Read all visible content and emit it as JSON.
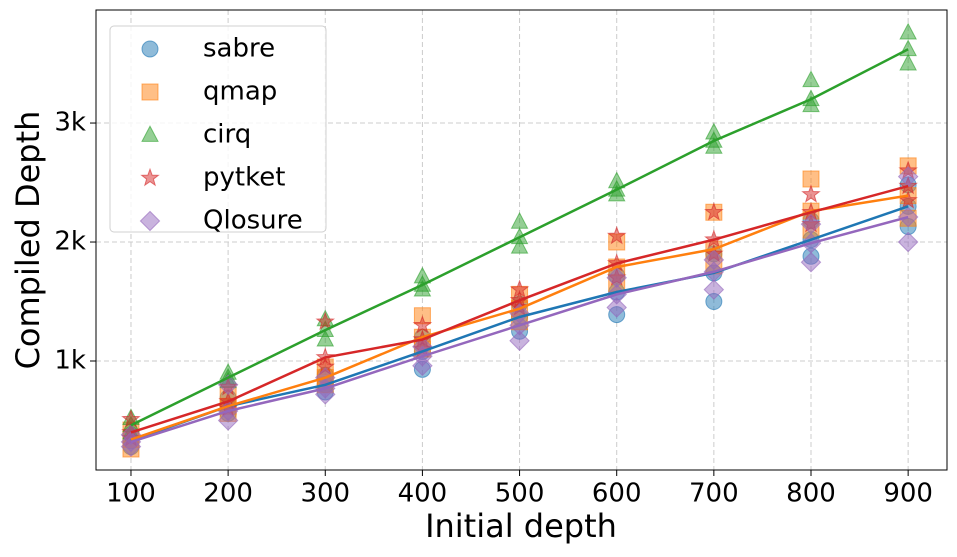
{
  "chart_data": {
    "type": "scatter",
    "x_label": "Initial depth",
    "y_label": "Compiled Depth",
    "xlim": [
      64,
      940
    ],
    "ylim": [
      84,
      3950
    ],
    "xticks": [
      100,
      200,
      300,
      400,
      500,
      600,
      700,
      800,
      900
    ],
    "yticks": [
      {
        "value": 1000,
        "label": "1k"
      },
      {
        "value": 2000,
        "label": "2k"
      },
      {
        "value": 3000,
        "label": "3k"
      }
    ],
    "grid": true,
    "legend": "upper left",
    "trend_x": [
      100,
      200,
      300,
      400,
      500,
      600,
      700,
      800,
      900
    ],
    "series": [
      {
        "name": "sabre",
        "color": "#1f77b4",
        "marker": "circle",
        "x": [
          100,
          100,
          100,
          200,
          200,
          200,
          300,
          300,
          300,
          400,
          400,
          400,
          500,
          500,
          500,
          600,
          600,
          600,
          700,
          700,
          700,
          800,
          800,
          800,
          900,
          900,
          900
        ],
        "values": [
          280,
          330,
          380,
          560,
          620,
          690,
          740,
          800,
          880,
          930,
          1080,
          1200,
          1250,
          1370,
          1480,
          1390,
          1580,
          1720,
          1500,
          1740,
          1900,
          1880,
          2020,
          2180,
          2130,
          2300,
          2480
        ],
        "trend": [
          330,
          620,
          800,
          1080,
          1370,
          1580,
          1740,
          2020,
          2300
        ]
      },
      {
        "name": "qmap",
        "color": "#ff7f0e",
        "marker": "square",
        "x": [
          100,
          100,
          100,
          200,
          200,
          200,
          300,
          300,
          300,
          400,
          400,
          400,
          500,
          500,
          500,
          600,
          600,
          600,
          700,
          700,
          700,
          800,
          800,
          800,
          900,
          900,
          900
        ],
        "values": [
          260,
          340,
          420,
          560,
          620,
          720,
          800,
          860,
          950,
          1100,
          1200,
          1380,
          1330,
          1440,
          1560,
          1650,
          1790,
          2000,
          1800,
          1940,
          2250,
          2100,
          2260,
          2530,
          2200,
          2390,
          2640
        ],
        "trend": [
          340,
          620,
          860,
          1200,
          1440,
          1790,
          1940,
          2260,
          2390
        ]
      },
      {
        "name": "cirq",
        "color": "#2ca02c",
        "marker": "triangle",
        "x": [
          100,
          100,
          100,
          200,
          200,
          200,
          300,
          300,
          300,
          400,
          400,
          400,
          500,
          500,
          500,
          600,
          600,
          600,
          700,
          700,
          700,
          800,
          800,
          800,
          900,
          900,
          900
        ],
        "values": [
          400,
          460,
          520,
          830,
          860,
          900,
          1180,
          1260,
          1350,
          1600,
          1640,
          1710,
          1960,
          2040,
          2170,
          2400,
          2440,
          2510,
          2800,
          2850,
          2920,
          3150,
          3200,
          3360,
          3500,
          3620,
          3760
        ],
        "trend": [
          460,
          860,
          1260,
          1640,
          2040,
          2440,
          2850,
          3200,
          3620
        ]
      },
      {
        "name": "pytket",
        "color": "#d62728",
        "marker": "star",
        "x": [
          100,
          100,
          100,
          200,
          200,
          200,
          300,
          300,
          300,
          400,
          400,
          400,
          500,
          500,
          500,
          600,
          600,
          600,
          700,
          700,
          700,
          800,
          800,
          800,
          900,
          900,
          900
        ],
        "values": [
          350,
          400,
          510,
          600,
          660,
          780,
          950,
          1030,
          1330,
          1100,
          1180,
          1300,
          1450,
          1510,
          1600,
          1700,
          1820,
          2050,
          1900,
          2020,
          2250,
          2150,
          2250,
          2400,
          2350,
          2470,
          2600
        ],
        "trend": [
          400,
          660,
          1030,
          1180,
          1510,
          1820,
          2020,
          2250,
          2470
        ]
      },
      {
        "name": "Qlosure",
        "color": "#9467bd",
        "marker": "diamond",
        "x": [
          100,
          100,
          100,
          200,
          200,
          200,
          300,
          300,
          300,
          400,
          400,
          400,
          500,
          500,
          500,
          600,
          600,
          600,
          700,
          700,
          700,
          800,
          800,
          800,
          900,
          900,
          900
        ],
        "values": [
          280,
          320,
          380,
          500,
          580,
          800,
          720,
          770,
          860,
          960,
          1040,
          1120,
          1170,
          1300,
          1400,
          1450,
          1560,
          1700,
          1600,
          1750,
          1850,
          1830,
          1990,
          2150,
          2000,
          2210,
          2550
        ],
        "trend": [
          320,
          580,
          770,
          1040,
          1300,
          1560,
          1750,
          1990,
          2210
        ]
      }
    ]
  }
}
